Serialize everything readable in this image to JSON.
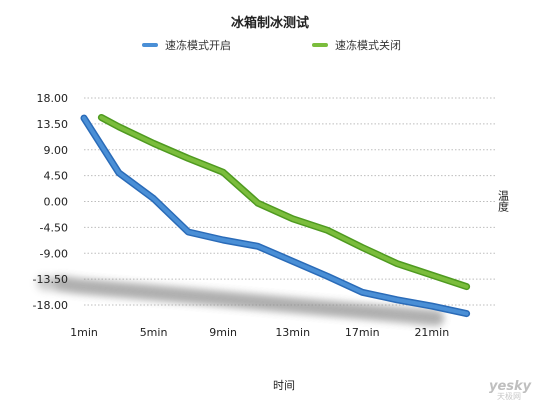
{
  "chart_data": {
    "type": "line",
    "title": "冰箱制冰测试",
    "xlabel": "时间",
    "ylabel": "温度",
    "x_tick_labels": [
      "1min",
      "5min",
      "9min",
      "13min",
      "17min",
      "21min"
    ],
    "y_tick_labels": [
      "18.00",
      "13.50",
      "9.00",
      "4.50",
      "0.00",
      "-4.50",
      "-9.00",
      "-13.50",
      "-18.00"
    ],
    "ylim": [
      -18,
      18
    ],
    "xlim": [
      1,
      24
    ],
    "grid": "horizontal dotted",
    "legend_position": "top",
    "series": [
      {
        "name": "速冻模式开启",
        "color": "#4a8fd6",
        "x": [
          1,
          3,
          5,
          7,
          9,
          11,
          13,
          15,
          17,
          19,
          21,
          23
        ],
        "y": [
          14.5,
          5.0,
          0.5,
          -5.3,
          -6.7,
          -7.8,
          -10.4,
          -13.0,
          -15.8,
          -17.1,
          -18.2,
          -19.5
        ]
      },
      {
        "name": "速冻模式关闭",
        "color": "#7bbd3c",
        "x": [
          2,
          3,
          5,
          7,
          9,
          11,
          13,
          15,
          17,
          19,
          21,
          23
        ],
        "y": [
          14.6,
          13.0,
          10.1,
          7.5,
          5.1,
          -0.3,
          -3.0,
          -5.0,
          -8.0,
          -10.8,
          -12.8,
          -14.8
        ]
      }
    ]
  },
  "watermark": {
    "brand": "yesky",
    "sub": "天极网"
  }
}
